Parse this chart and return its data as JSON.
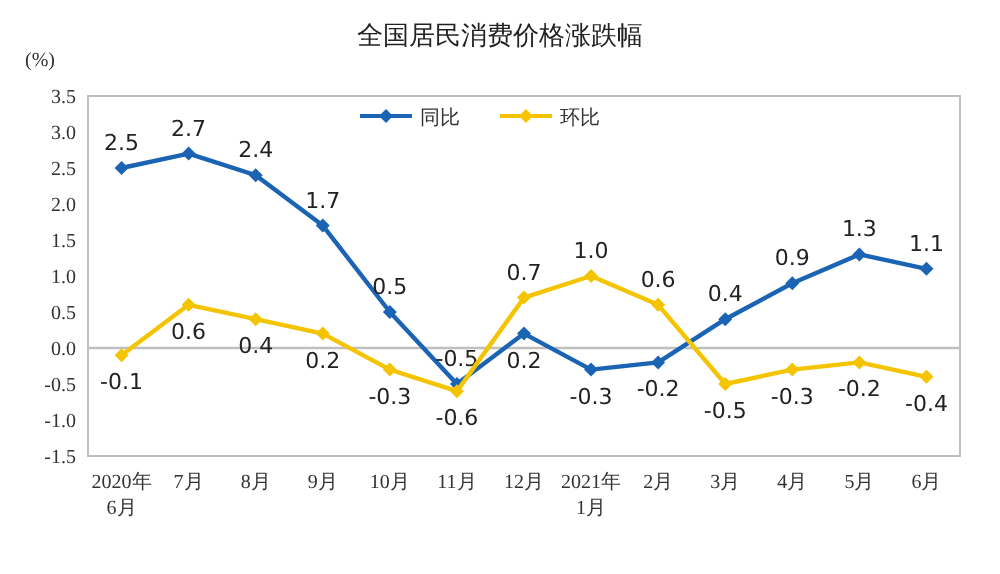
{
  "chart_data": {
    "type": "line",
    "title": "全国居民消费价格涨跌幅",
    "ylabel": "(%)",
    "categories": [
      "2020年\n6月",
      "7月",
      "8月",
      "9月",
      "10月",
      "11月",
      "12月",
      "2021年\n1月",
      "2月",
      "3月",
      "4月",
      "5月",
      "6月"
    ],
    "series": [
      {
        "name": "同比",
        "color": "#1b64b4",
        "values": [
          2.5,
          2.7,
          2.4,
          1.7,
          0.5,
          -0.5,
          0.2,
          -0.3,
          -0.2,
          0.4,
          0.9,
          1.3,
          1.1
        ],
        "value_labels": [
          "2.5",
          "2.7",
          "2.4",
          "1.7",
          "0.5",
          "-0.5",
          "0.2",
          "-0.3",
          "-0.2",
          "0.4",
          "0.9",
          "1.3",
          "1.1"
        ]
      },
      {
        "name": "环比",
        "color": "#f5c400",
        "values": [
          -0.1,
          0.6,
          0.4,
          0.2,
          -0.3,
          -0.6,
          0.7,
          1.0,
          0.6,
          -0.5,
          -0.3,
          -0.2,
          -0.4
        ],
        "value_labels": [
          "-0.1",
          "0.6",
          "0.4",
          "0.2",
          "-0.3",
          "-0.6",
          "0.7",
          "1.0",
          "0.6",
          "-0.5",
          "-0.3",
          "-0.2",
          "-0.4"
        ]
      }
    ],
    "ylim": [
      -1.5,
      3.5
    ],
    "yticks": [
      -1.5,
      {
        "value": -1,
        "label": "-1.0"
      },
      -0.5,
      {
        "value": 0,
        "label": "0.0"
      },
      0.5,
      {
        "value": 1,
        "label": "1.0"
      },
      1.5,
      {
        "value": 2,
        "label": "2.0"
      },
      2.5,
      {
        "value": 3,
        "label": "3.0"
      },
      3.5
    ],
    "ref_lines": [
      {
        "axis": "y",
        "value": 0,
        "color": "#bfbfbf"
      }
    ],
    "legend": "top",
    "marker": "diamond"
  }
}
